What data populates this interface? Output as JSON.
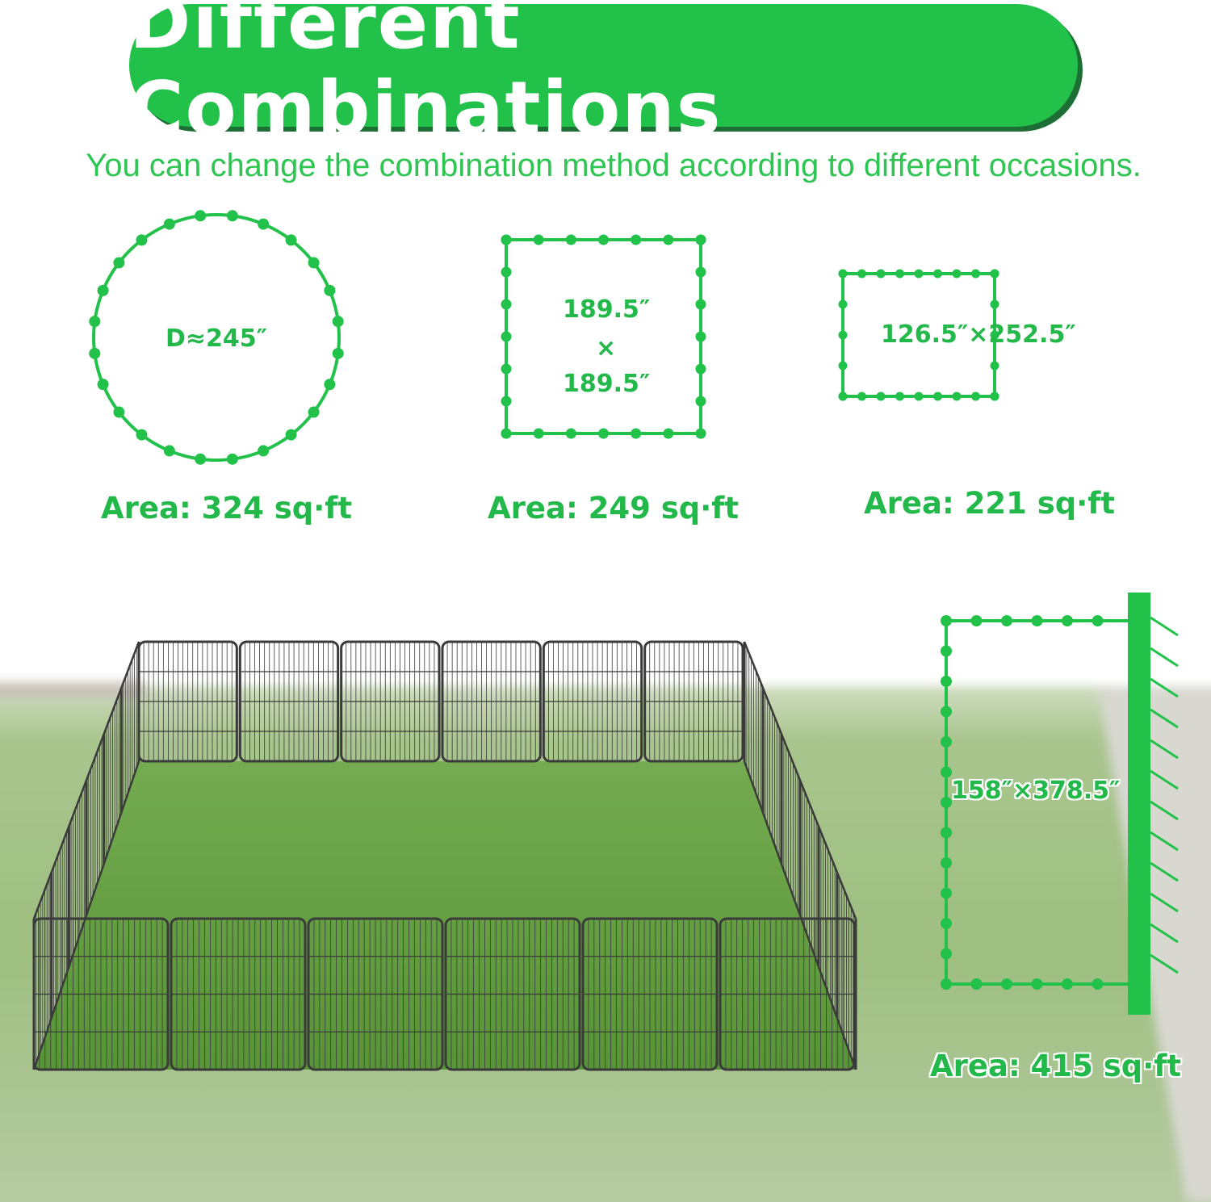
{
  "header": {
    "title": "Different Combinations",
    "subtitle": "You can change the combination method according to different occasions."
  },
  "colors": {
    "accent": "#22c14a",
    "title_shadow": "#1d6e34",
    "fence": "#3a3a3a"
  },
  "combinations": [
    {
      "shape": "circle",
      "dimension": "D≈245″",
      "area": "Area: 324 sq·ft"
    },
    {
      "shape": "square",
      "dimension_top": "189.5″",
      "dimension_sep": "×",
      "dimension_bottom": "189.5″",
      "area": "Area: 249 sq·ft"
    },
    {
      "shape": "rectangle",
      "dimension": "126.5″×252.5″",
      "area": "Area: 221 sq·ft"
    },
    {
      "shape": "against-wall",
      "dimension": "158″×378.5″",
      "area": "Area: 415 sq·ft"
    }
  ]
}
